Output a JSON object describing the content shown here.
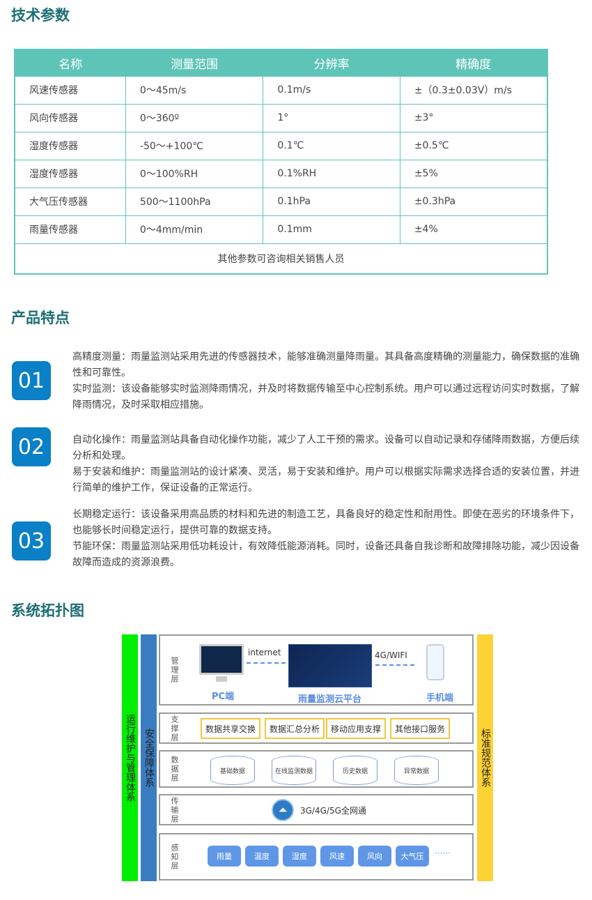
{
  "sections": {
    "specs": "技术参数",
    "features": "产品特点",
    "topology": "系统拓扑图"
  },
  "table": {
    "headers": [
      "名称",
      "测量范围",
      "分辨率",
      "精确度"
    ],
    "rows": [
      [
        "风速传感器",
        "0～45m/s",
        "0.1m/s",
        "±（0.3±0.03V）m/s"
      ],
      [
        "风向传感器",
        "0～360º",
        "1°",
        "±3°"
      ],
      [
        "湿度传感器",
        "-50～+100℃",
        "0.1℃",
        "±0.5℃"
      ],
      [
        "湿度传感器",
        " 0～100%RH",
        "0.1%RH",
        "±5%"
      ],
      [
        "大气压传感器",
        "500～1100hPa",
        "0.1hPa",
        "±0.3hPa"
      ],
      [
        "雨量传感器",
        "0～4mm/min",
        "0.1mm",
        "±4%"
      ]
    ],
    "footer": "其他参数可咨询相关销售人员"
  },
  "features": [
    {
      "num": "01",
      "paras": [
        "高精度测量：雨量监测站采用先进的传感器技术，能够准确测量降雨量。其具备高度精确的测量能力，确保数据的准确性和可靠性。",
        "实时监测：该设备能够实时监测降雨情况，并及时将数据传输至中心控制系统。用户可以通过远程访问实时数据，了解降雨情况，及时采取相应措施。"
      ]
    },
    {
      "num": "02",
      "paras": [
        "自动化操作：雨量监测站具备自动化操作功能，减少了人工干预的需求。设备可以自动记录和存储降雨数据，方便后续分析和处理。",
        "易于安装和维护：雨量监测站的设计紧凑、灵活，易于安装和维护。用户可以根据实际需求选择合适的安装位置，并进行简单的维护工作，保证设备的正常运行。"
      ]
    },
    {
      "num": "03",
      "paras": [
        "长期稳定运行：该设备采用高品质的材料和先进的制造工艺，具备良好的稳定性和耐用性。即使在恶劣的环境条件下，也能够长时间稳定运行，提供可靠的数据支持。",
        "节能环保：雨量监测站采用低功耗设计，有效降低能源消耗。同时，设备还具备自我诊断和故障排除功能，减少因设备故障而造成的资源浪费。"
      ]
    }
  ],
  "diagram": {
    "left_bar": "运行维护与管理体系",
    "security_bar": "安全保障体系",
    "right_bar": "标准规范体系",
    "mgmt": {
      "name": "管理层",
      "internet": "internet",
      "wifi": "4G/WIFI",
      "pc": "PC端",
      "cloud": "雨量监测云平台",
      "phone": "手机端"
    },
    "support": {
      "name": "支撑层",
      "items": [
        "数据共享交换",
        "数据汇总分析",
        "移动应用支撑",
        "其他接口服务"
      ]
    },
    "data": {
      "name": "数据层",
      "items": [
        "基础数据",
        "在线监测数据",
        "历史数据",
        "异常数据"
      ]
    },
    "trans": {
      "name": "传输层",
      "label": "3G/4G/5G全网通"
    },
    "sense": {
      "name": "感知层",
      "items": [
        "雨量",
        "温度",
        "湿度",
        "风速",
        "风向",
        "大气压"
      ],
      "more": "······"
    },
    "colors": {
      "green": "#00ee00",
      "blue": "#3a7dc0",
      "yellow": "#fdd233"
    }
  }
}
